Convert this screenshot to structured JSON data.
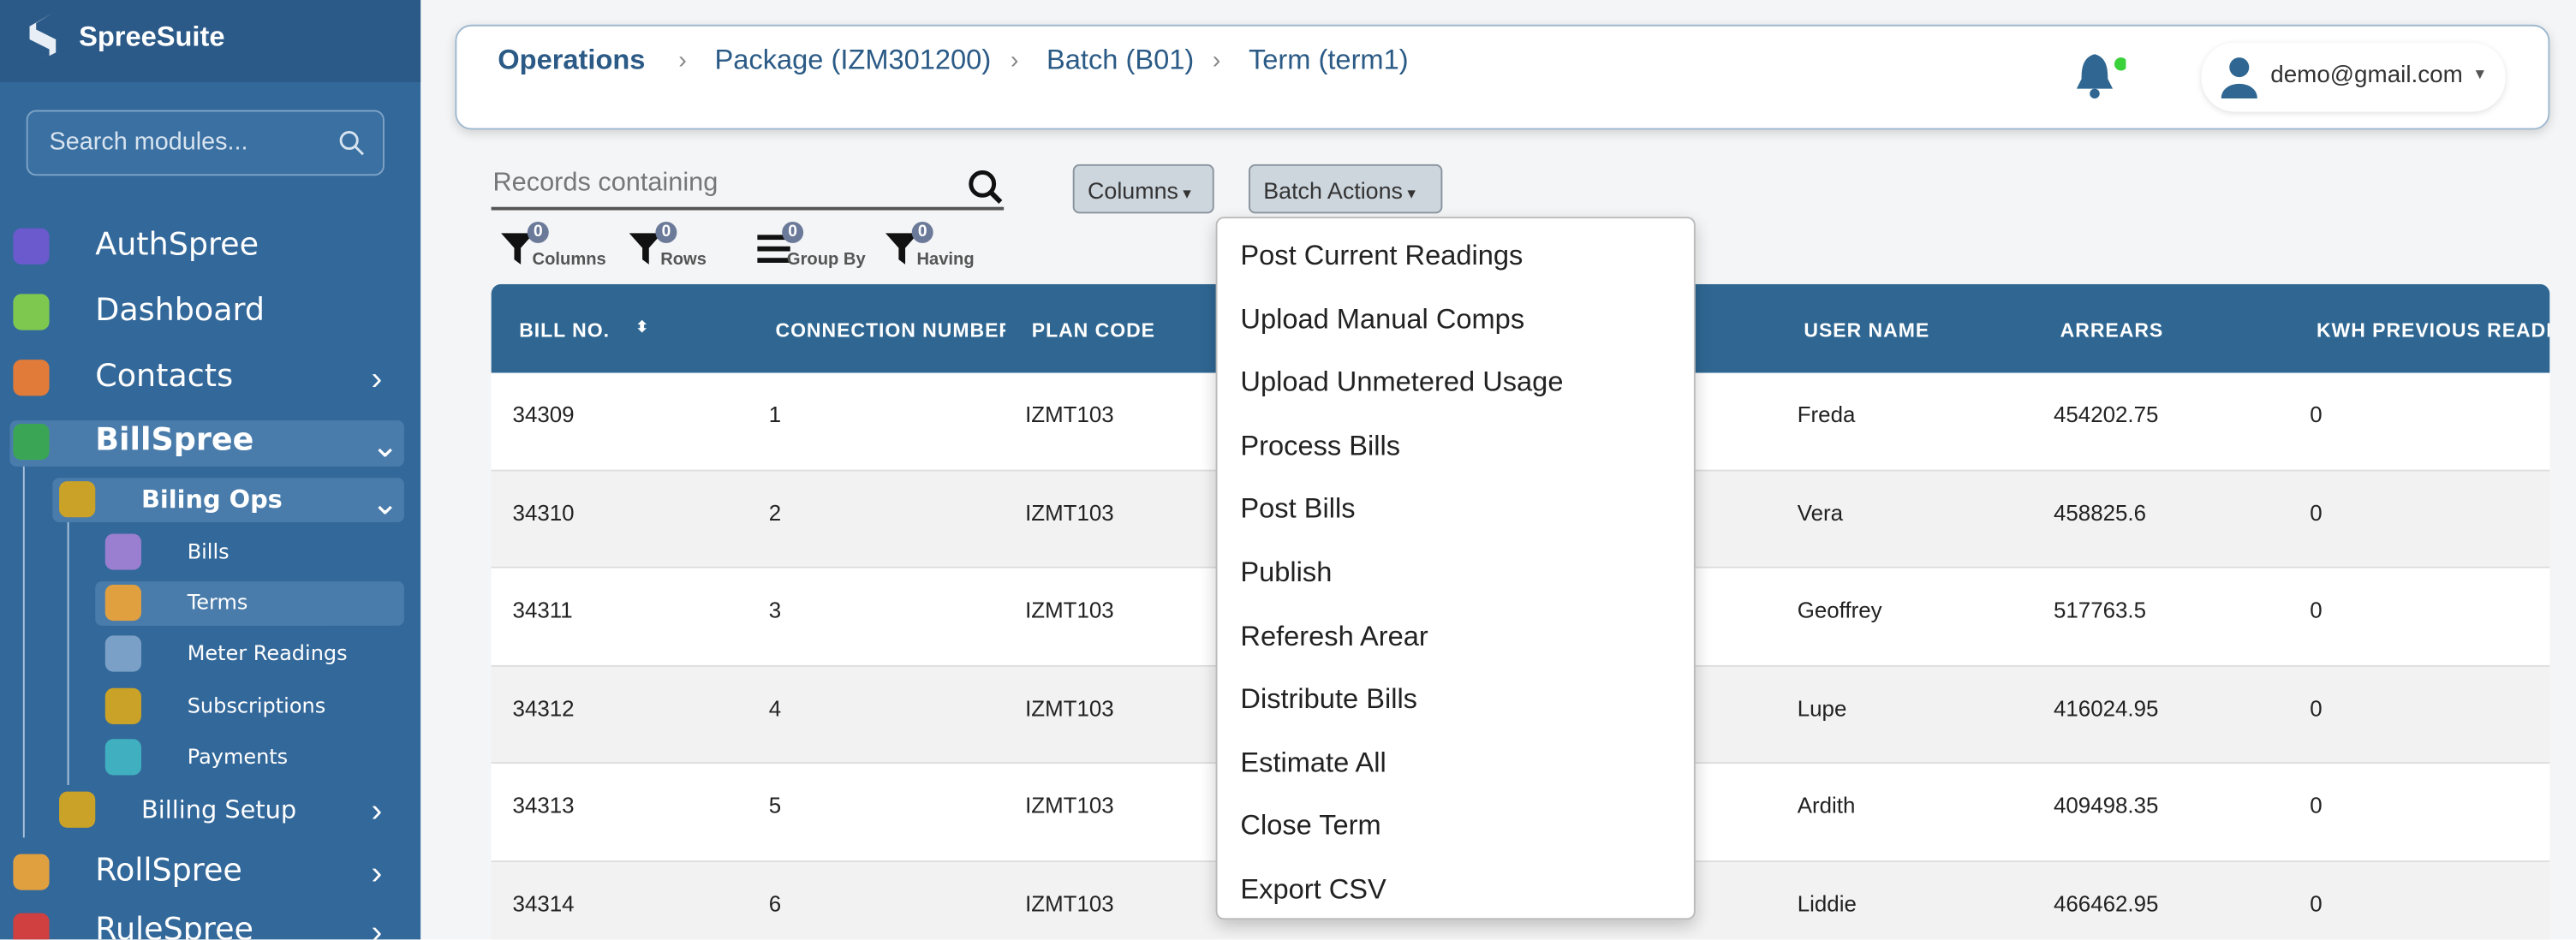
{
  "sidebar": {
    "brand": "SpreeSuite",
    "search_placeholder": "Search modules...",
    "items": [
      {
        "label": "AuthSpree",
        "level": 0
      },
      {
        "label": "Dashboard",
        "level": 0
      },
      {
        "label": "Contacts",
        "level": 0
      },
      {
        "label": "BillSpree",
        "level": 0
      },
      {
        "label": "Biling Ops",
        "level": 1
      },
      {
        "label": "Bills",
        "level": 2
      },
      {
        "label": "Terms",
        "level": 2
      },
      {
        "label": "Meter Readings",
        "level": 2
      },
      {
        "label": "Subscriptions",
        "level": 2
      },
      {
        "label": "Payments",
        "level": 2
      },
      {
        "label": "Billing Setup",
        "level": 1
      },
      {
        "label": "RollSpree",
        "level": 0
      },
      {
        "label": "RuleSpree",
        "level": 0
      }
    ]
  },
  "header": {
    "breadcrumb": [
      "Operations",
      "Package (IZM301200)",
      "Batch (B01)",
      "Term (term1)"
    ],
    "user": "demo@gmail.com"
  },
  "toolbar": {
    "search_placeholder": "Records containing",
    "buttons": [
      "Columns",
      "Batch Actions"
    ],
    "filters": [
      {
        "label": "Columns",
        "count": 0
      },
      {
        "label": "Rows",
        "count": 0
      },
      {
        "label": "Group By",
        "count": 0
      },
      {
        "label": "Having",
        "count": 0
      }
    ]
  },
  "table": {
    "columns": [
      "BILL NO.",
      "CONNECTION NUMBER",
      "PLAN CODE",
      "USER NAME",
      "ARREARS",
      "KWH PREVIOUS READING"
    ],
    "rows": [
      [
        "34309",
        "1",
        "IZMT103",
        "Freda",
        "454202.75",
        "0"
      ],
      [
        "34310",
        "2",
        "IZMT103",
        "Vera",
        "458825.6",
        "0"
      ],
      [
        "34311",
        "3",
        "IZMT103",
        "Geoffrey",
        "517763.5",
        "0"
      ],
      [
        "34312",
        "4",
        "IZMT103",
        "Lupe",
        "416024.95",
        "0"
      ],
      [
        "34313",
        "5",
        "IZMT103",
        "Ardith",
        "409498.35",
        "0"
      ],
      [
        "34314",
        "6",
        "IZMT103",
        "Liddie",
        "466462.95",
        "0"
      ]
    ]
  },
  "dropdown": {
    "items": [
      "Post Current Readings",
      "Upload Manual Comps",
      "Upload Unmetered Usage",
      "Process Bills",
      "Post Bills",
      "Publish",
      "Referesh Arear",
      "Distribute Bills",
      "Estimate All",
      "Close Term",
      "Export CSV"
    ]
  }
}
